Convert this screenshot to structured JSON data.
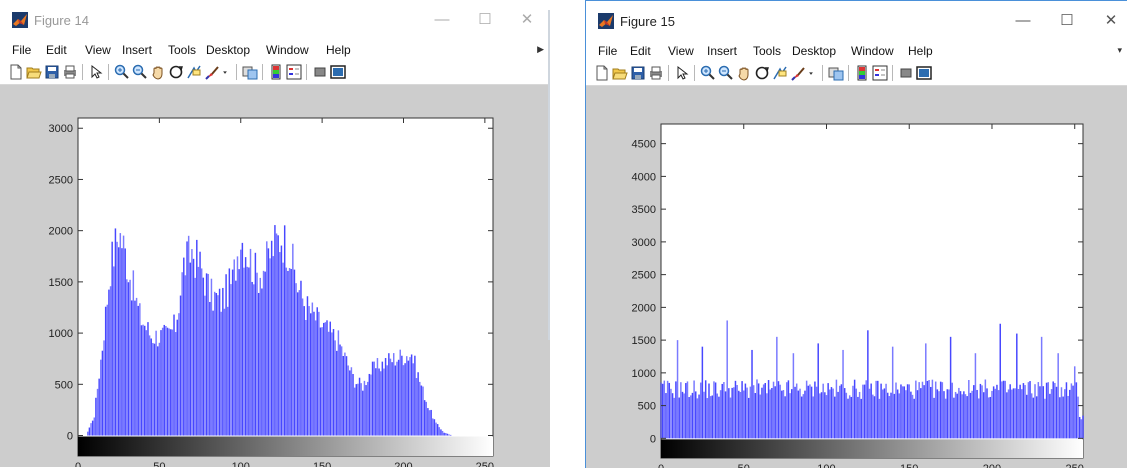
{
  "windows": [
    {
      "title": "Figure 14",
      "active": false,
      "controls": {
        "minimize": "—",
        "maximize": "☐",
        "close": "✕"
      },
      "menu": [
        "File",
        "Edit",
        "View",
        "Insert",
        "Tools",
        "Desktop",
        "Window",
        "Help"
      ],
      "toolbar_icons": [
        "new-figure-icon",
        "open-file-icon",
        "save-icon",
        "print-icon",
        "edit-plot-arrow-icon",
        "zoom-in-icon",
        "zoom-out-icon",
        "pan-hand-icon",
        "rotate-3d-icon",
        "data-cursor-icon",
        "brush-icon",
        "brush-dropdown-icon",
        "link-plot-icon",
        "colorbar-icon",
        "legend-icon",
        "hide-plot-tools-icon",
        "show-plot-tools-icon"
      ]
    },
    {
      "title": "Figure 15",
      "active": true,
      "controls": {
        "minimize": "—",
        "maximize": "☐",
        "close": "✕"
      },
      "menu": [
        "File",
        "Edit",
        "View",
        "Insert",
        "Tools",
        "Desktop",
        "Window",
        "Help"
      ],
      "toolbar_icons": [
        "new-figure-icon",
        "open-file-icon",
        "save-icon",
        "print-icon",
        "edit-plot-arrow-icon",
        "zoom-in-icon",
        "zoom-out-icon",
        "pan-hand-icon",
        "rotate-3d-icon",
        "data-cursor-icon",
        "brush-icon",
        "brush-dropdown-icon",
        "link-plot-icon",
        "colorbar-icon",
        "legend-icon",
        "hide-plot-tools-icon",
        "show-plot-tools-icon"
      ]
    }
  ],
  "chart_data": [
    {
      "type": "bar",
      "xlim": [
        0,
        255
      ],
      "ylim": [
        -200,
        3100
      ],
      "xticks": [
        0,
        50,
        100,
        150,
        200,
        250
      ],
      "yticks": [
        0,
        500,
        1000,
        1500,
        2000,
        2500,
        3000
      ],
      "bar_color": "#3333ff",
      "colorbar": "grayscale 0-255",
      "bin_count": 256,
      "envelope": [
        [
          0,
          0
        ],
        [
          5,
          0
        ],
        [
          10,
          200
        ],
        [
          15,
          900
        ],
        [
          20,
          1700
        ],
        [
          25,
          2050
        ],
        [
          28,
          1900
        ],
        [
          32,
          1600
        ],
        [
          38,
          1200
        ],
        [
          45,
          1000
        ],
        [
          55,
          1000
        ],
        [
          60,
          1100
        ],
        [
          65,
          1700
        ],
        [
          70,
          1850
        ],
        [
          75,
          1700
        ],
        [
          82,
          1400
        ],
        [
          88,
          1350
        ],
        [
          95,
          1550
        ],
        [
          100,
          2000
        ],
        [
          105,
          1800
        ],
        [
          110,
          1600
        ],
        [
          115,
          1700
        ],
        [
          120,
          1900
        ],
        [
          125,
          2000
        ],
        [
          130,
          1850
        ],
        [
          135,
          1500
        ],
        [
          140,
          1300
        ],
        [
          150,
          1100
        ],
        [
          160,
          950
        ],
        [
          170,
          550
        ],
        [
          175,
          500
        ],
        [
          180,
          650
        ],
        [
          190,
          750
        ],
        [
          200,
          800
        ],
        [
          205,
          820
        ],
        [
          210,
          550
        ],
        [
          215,
          300
        ],
        [
          220,
          120
        ],
        [
          225,
          30
        ],
        [
          230,
          0
        ],
        [
          255,
          0
        ]
      ]
    },
    {
      "type": "bar",
      "xlim": [
        0,
        255
      ],
      "ylim": [
        -300,
        4800
      ],
      "xticks": [
        0,
        50,
        100,
        150,
        200,
        250
      ],
      "yticks": [
        0,
        500,
        1000,
        1500,
        2000,
        2500,
        3000,
        3500,
        4000,
        4500
      ],
      "bar_color": "#3333ff",
      "colorbar": "grayscale 0-255",
      "bin_count": 256,
      "base_level": 750,
      "peaks": [
        [
          10,
          1500
        ],
        [
          25,
          1400
        ],
        [
          40,
          1800
        ],
        [
          55,
          1350
        ],
        [
          70,
          1550
        ],
        [
          80,
          1300
        ],
        [
          95,
          1450
        ],
        [
          110,
          1350
        ],
        [
          125,
          1650
        ],
        [
          140,
          1400
        ],
        [
          160,
          1450
        ],
        [
          175,
          1550
        ],
        [
          190,
          1300
        ],
        [
          205,
          1750
        ],
        [
          215,
          1600
        ],
        [
          230,
          1550
        ],
        [
          240,
          1300
        ],
        [
          250,
          1100
        ]
      ]
    }
  ]
}
